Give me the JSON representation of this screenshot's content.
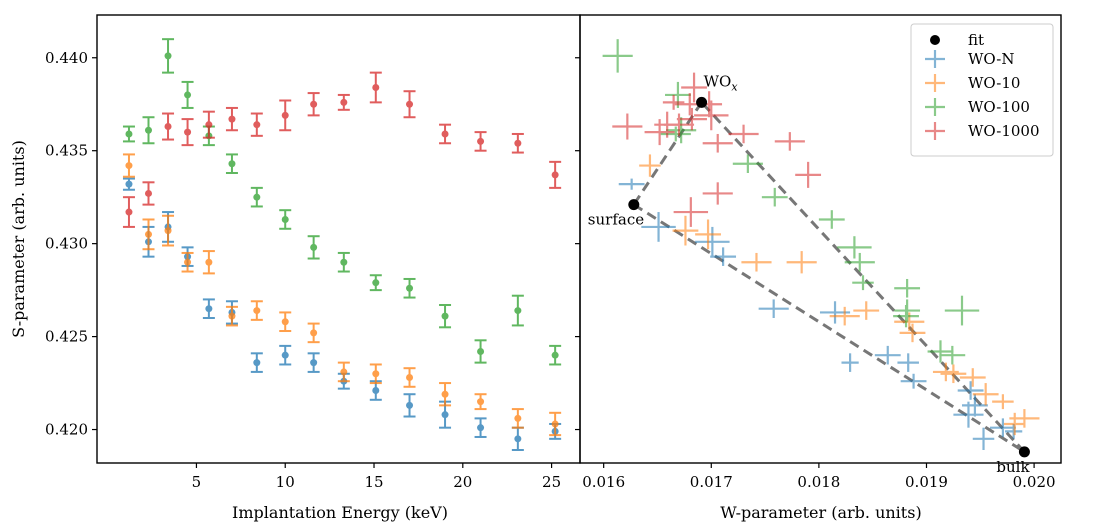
{
  "colors": {
    "WO-N": "#1f77b4",
    "WO-10": "#ff7f0e",
    "WO-100": "#2ca02c",
    "WO-1000": "#d62728",
    "fit": "#000000",
    "fit_line": "#777777"
  },
  "chart_data": [
    {
      "type": "scatter",
      "xlabel": "Implantation Energy (keV)",
      "ylabel": "S-parameter (arb. units)",
      "xlim": [
        -0.6,
        26.6
      ],
      "ylim": [
        0.4182,
        0.4423
      ],
      "xticks": [
        5,
        10,
        15,
        20,
        25
      ],
      "xtick_labels": [
        "5",
        "10",
        "15",
        "20",
        "25"
      ],
      "yticks": [
        0.42,
        0.425,
        0.43,
        0.435,
        0.44
      ],
      "ytick_labels": [
        "0.420",
        "0.425",
        "0.430",
        "0.435",
        "0.440"
      ],
      "legend": "none",
      "grid": false,
      "series": [
        {
          "name": "WO-N",
          "color_key": "WO-N",
          "x": [
            1.2,
            2.3,
            3.4,
            4.5,
            5.7,
            7.0,
            8.4,
            10.0,
            11.6,
            13.3,
            15.1,
            17.0,
            19.0,
            21.0,
            23.1,
            25.2
          ],
          "y": [
            0.4332,
            0.4301,
            0.4309,
            0.4293,
            0.4265,
            0.4263,
            0.4236,
            0.424,
            0.4236,
            0.4226,
            0.4221,
            0.4213,
            0.4208,
            0.4201,
            0.4195,
            0.4199
          ],
          "err": [
            0.0003,
            0.0008,
            0.0008,
            0.0005,
            0.0005,
            0.0006,
            0.0005,
            0.0005,
            0.0005,
            0.0004,
            0.0005,
            0.0006,
            0.0007,
            0.0005,
            0.0006,
            0.0004
          ]
        },
        {
          "name": "WO-10",
          "color_key": "WO-10",
          "x": [
            1.2,
            2.3,
            3.4,
            4.5,
            5.7,
            7.0,
            8.4,
            10.0,
            11.6,
            13.3,
            15.1,
            17.0,
            19.0,
            21.0,
            23.1,
            25.2
          ],
          "y": [
            0.4342,
            0.4305,
            0.4307,
            0.429,
            0.429,
            0.4261,
            0.4264,
            0.4258,
            0.4252,
            0.4231,
            0.423,
            0.4228,
            0.4219,
            0.4215,
            0.4206,
            0.4203
          ],
          "err": [
            0.0006,
            0.0008,
            0.0008,
            0.0005,
            0.0006,
            0.0005,
            0.0005,
            0.0005,
            0.0005,
            0.0005,
            0.0005,
            0.0005,
            0.0006,
            0.0004,
            0.0005,
            0.0006
          ]
        },
        {
          "name": "WO-100",
          "color_key": "WO-100",
          "x": [
            1.2,
            2.3,
            3.4,
            4.5,
            5.7,
            7.0,
            8.4,
            10.0,
            11.6,
            13.3,
            15.1,
            17.0,
            19.0,
            21.0,
            23.1,
            25.2
          ],
          "y": [
            0.4359,
            0.4361,
            0.4401,
            0.438,
            0.4358,
            0.4343,
            0.4325,
            0.4313,
            0.4298,
            0.429,
            0.4279,
            0.4276,
            0.4261,
            0.4242,
            0.4264,
            0.424
          ],
          "err": [
            0.0004,
            0.0007,
            0.0009,
            0.0007,
            0.0005,
            0.0005,
            0.0005,
            0.0005,
            0.0006,
            0.0005,
            0.0004,
            0.0005,
            0.0006,
            0.0006,
            0.0008,
            0.0005
          ]
        },
        {
          "name": "WO-1000",
          "color_key": "WO-1000",
          "x": [
            1.2,
            2.3,
            3.4,
            4.5,
            5.7,
            7.0,
            8.4,
            10.0,
            11.6,
            13.3,
            15.1,
            17.0,
            19.0,
            21.0,
            23.1,
            25.2
          ],
          "y": [
            0.4317,
            0.4327,
            0.4363,
            0.436,
            0.4364,
            0.4367,
            0.4364,
            0.4369,
            0.4375,
            0.4376,
            0.4384,
            0.4375,
            0.4359,
            0.4355,
            0.4354,
            0.4337
          ],
          "err": [
            0.0008,
            0.0006,
            0.0007,
            0.0007,
            0.0007,
            0.0006,
            0.0006,
            0.0008,
            0.0006,
            0.0004,
            0.0008,
            0.0007,
            0.0005,
            0.0005,
            0.0005,
            0.0007
          ]
        }
      ]
    },
    {
      "type": "scatter",
      "xlabel": "W-parameter (arb. units)",
      "ylabel": "",
      "xlim": [
        0.01578,
        0.02025
      ],
      "ylim": [
        0.4182,
        0.4423
      ],
      "xticks": [
        0.016,
        0.017,
        0.018,
        0.019,
        0.02
      ],
      "xtick_labels": [
        "0.016",
        "0.017",
        "0.018",
        "0.019",
        "0.020"
      ],
      "yticks": [
        0.42,
        0.425,
        0.43,
        0.435,
        0.44
      ],
      "ytick_labels": [
        "",
        "",
        "",
        "",
        ""
      ],
      "legend": "top-right",
      "grid": false,
      "legend_entries": [
        "fit",
        "WO-N",
        "WO-10",
        "WO-100",
        "WO-1000"
      ],
      "fit_points": [
        {
          "label": "WO",
          "label_sub": "x",
          "w": 0.01691,
          "s": 0.4376
        },
        {
          "label": "surface",
          "label_sub": "",
          "w": 0.01628,
          "s": 0.4321
        },
        {
          "label": "bulk",
          "label_sub": "",
          "w": 0.01991,
          "s": 0.4188
        }
      ],
      "fit_lines": [
        [
          0,
          1
        ],
        [
          1,
          2
        ],
        [
          2,
          0
        ]
      ],
      "series": [
        {
          "name": "WO-N",
          "color_key": "WO-N",
          "points": [
            [
              0.01626,
              0.4332,
              0.00012,
              0.0003
            ],
            [
              0.01651,
              0.4309,
              0.00016,
              0.0008
            ],
            [
              0.01701,
              0.4301,
              0.00016,
              0.0008
            ],
            [
              0.01711,
              0.4293,
              0.00012,
              0.0005
            ],
            [
              0.01758,
              0.4265,
              0.00014,
              0.0005
            ],
            [
              0.01815,
              0.4263,
              0.00014,
              0.0006
            ],
            [
              0.01829,
              0.4236,
              8e-05,
              0.0005
            ],
            [
              0.01864,
              0.424,
              0.00012,
              0.0005
            ],
            [
              0.01883,
              0.4236,
              0.0001,
              0.0005
            ],
            [
              0.01888,
              0.4226,
              0.00012,
              0.0004
            ],
            [
              0.01941,
              0.4221,
              0.00012,
              0.0005
            ],
            [
              0.01945,
              0.4213,
              0.00012,
              0.0006
            ],
            [
              0.01939,
              0.4208,
              0.00014,
              0.0007
            ],
            [
              0.01971,
              0.4201,
              0.00012,
              0.0005
            ],
            [
              0.01953,
              0.4195,
              0.0001,
              0.0006
            ],
            [
              0.01981,
              0.4199,
              8e-05,
              0.0004
            ]
          ]
        },
        {
          "name": "WO-10",
          "color_key": "WO-10",
          "points": [
            [
              0.01643,
              0.4342,
              0.0001,
              0.0006
            ],
            [
              0.01676,
              0.4307,
              0.00012,
              0.0008
            ],
            [
              0.01697,
              0.4305,
              0.00012,
              0.0008
            ],
            [
              0.01742,
              0.429,
              0.00014,
              0.0005
            ],
            [
              0.01784,
              0.429,
              0.00014,
              0.0006
            ],
            [
              0.01824,
              0.4261,
              0.00014,
              0.0005
            ],
            [
              0.01844,
              0.4264,
              0.00012,
              0.0005
            ],
            [
              0.01884,
              0.4258,
              0.00014,
              0.0005
            ],
            [
              0.01887,
              0.4252,
              0.00012,
              0.0005
            ],
            [
              0.01918,
              0.4231,
              0.00012,
              0.0005
            ],
            [
              0.01925,
              0.423,
              0.00012,
              0.0005
            ],
            [
              0.01943,
              0.4228,
              0.00012,
              0.0005
            ],
            [
              0.01955,
              0.4219,
              0.00012,
              0.0006
            ],
            [
              0.01971,
              0.4215,
              0.0001,
              0.0004
            ],
            [
              0.01991,
              0.4206,
              0.00014,
              0.0005
            ],
            [
              0.01982,
              0.4203,
              0.0001,
              0.0006
            ]
          ]
        },
        {
          "name": "WO-100",
          "color_key": "WO-100",
          "points": [
            [
              0.01613,
              0.4401,
              0.00014,
              0.0009
            ],
            [
              0.01669,
              0.438,
              0.00012,
              0.0007
            ],
            [
              0.01667,
              0.4359,
              0.00014,
              0.0004
            ],
            [
              0.01672,
              0.4361,
              0.00014,
              0.0007
            ],
            [
              0.01734,
              0.4343,
              0.00014,
              0.0005
            ],
            [
              0.01759,
              0.4325,
              0.00012,
              0.0005
            ],
            [
              0.01812,
              0.4313,
              0.00012,
              0.0005
            ],
            [
              0.01833,
              0.4298,
              0.00016,
              0.0006
            ],
            [
              0.01838,
              0.429,
              0.00014,
              0.0005
            ],
            [
              0.01882,
              0.4276,
              0.00012,
              0.0005
            ],
            [
              0.01882,
              0.4264,
              0.00012,
              0.0006
            ],
            [
              0.01933,
              0.4264,
              0.00016,
              0.0008
            ],
            [
              0.01913,
              0.4242,
              0.00012,
              0.0006
            ],
            [
              0.01924,
              0.424,
              0.00012,
              0.0005
            ],
            [
              0.01881,
              0.4261,
              0.00012,
              0.0006
            ],
            [
              0.01841,
              0.4279,
              0.0001,
              0.0004
            ]
          ]
        },
        {
          "name": "WO-1000",
          "color_key": "WO-1000",
          "points": [
            [
              0.01681,
              0.4317,
              0.00016,
              0.0008
            ],
            [
              0.01706,
              0.4327,
              0.00014,
              0.0006
            ],
            [
              0.01622,
              0.4363,
              0.00014,
              0.0007
            ],
            [
              0.01652,
              0.436,
              0.00014,
              0.0007
            ],
            [
              0.01659,
              0.4364,
              0.00012,
              0.0007
            ],
            [
              0.01682,
              0.4367,
              0.00014,
              0.0006
            ],
            [
              0.0167,
              0.4364,
              0.00014,
              0.0006
            ],
            [
              0.017,
              0.4369,
              0.00016,
              0.0008
            ],
            [
              0.0168,
              0.4375,
              0.00014,
              0.0006
            ],
            [
              0.01665,
              0.4376,
              0.0001,
              0.0004
            ],
            [
              0.01684,
              0.4384,
              0.00012,
              0.0008
            ],
            [
              0.01698,
              0.4375,
              0.00012,
              0.0007
            ],
            [
              0.0173,
              0.4359,
              0.00014,
              0.0005
            ],
            [
              0.01773,
              0.4355,
              0.00014,
              0.0005
            ],
            [
              0.0179,
              0.4337,
              0.00012,
              0.0007
            ],
            [
              0.01706,
              0.4354,
              0.00014,
              0.0005
            ]
          ]
        }
      ]
    }
  ]
}
